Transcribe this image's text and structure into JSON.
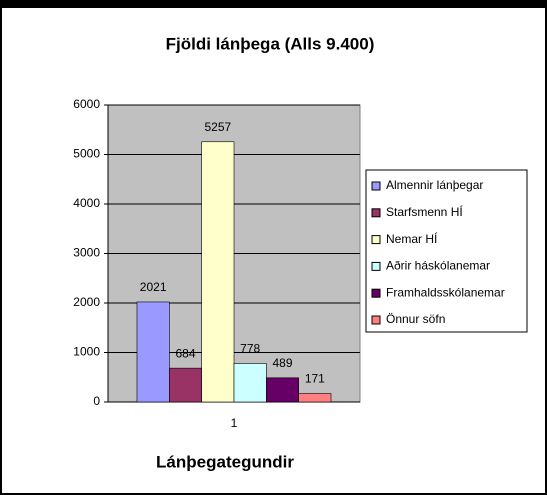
{
  "chart_data": {
    "type": "bar",
    "title": "Fjöldi lánþega (Alls 9.400)",
    "x_label": "Lánþegategundir",
    "categories": [
      "1"
    ],
    "series": [
      {
        "name": "Almennir lánþegar",
        "color": "#9999ff",
        "values": [
          2021
        ]
      },
      {
        "name": "Starfsmenn HÍ",
        "color": "#993366",
        "values": [
          684
        ]
      },
      {
        "name": "Nemar HÍ",
        "color": "#ffffcc",
        "values": [
          5257
        ]
      },
      {
        "name": "Aðrir háskólanemar",
        "color": "#ccffff",
        "values": [
          778
        ]
      },
      {
        "name": "Framhaldsskólanemar",
        "color": "#660066",
        "values": [
          489
        ]
      },
      {
        "name": "Önnur söfn",
        "color": "#ff8080",
        "values": [
          171
        ]
      }
    ],
    "ylim": [
      0,
      6000
    ],
    "yticks": [
      0,
      1000,
      2000,
      3000,
      4000,
      5000,
      6000
    ],
    "grid": true,
    "legend": "right",
    "plot_background": "#c0c0c0"
  }
}
